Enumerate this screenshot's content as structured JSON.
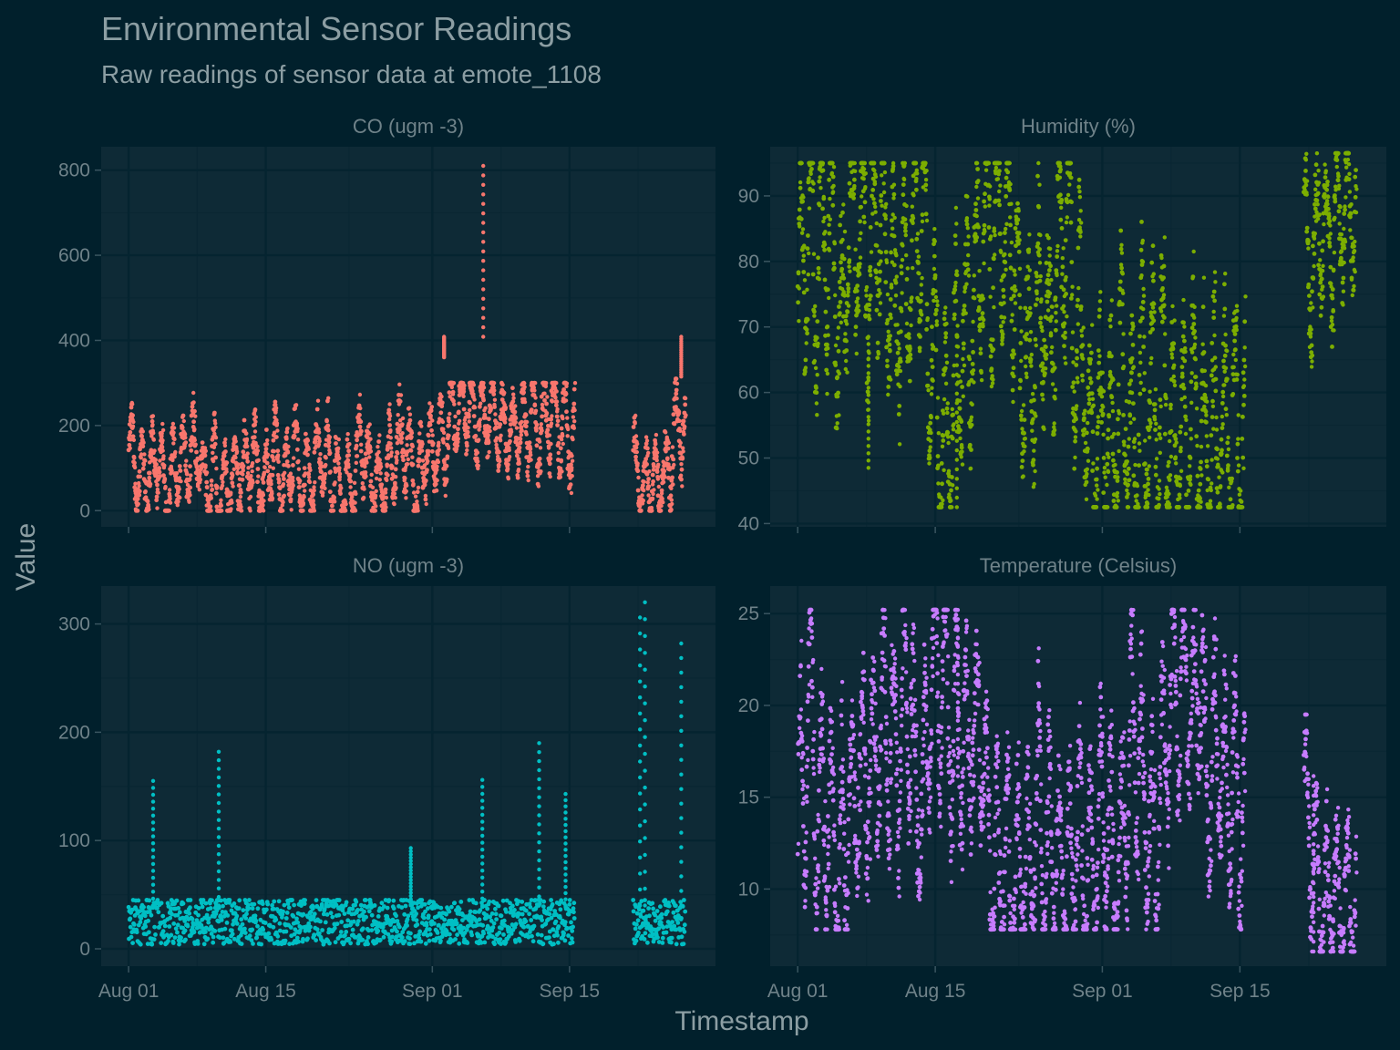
{
  "title": "Environmental Sensor Readings",
  "subtitle": "Raw readings of sensor data at emote_1108",
  "chart_data": {
    "type": "scatter",
    "layout": "facet 2x2, independent y scales, shared x axis",
    "xlabel": "Timestamp",
    "ylabel": "Value",
    "x_ticks": [
      "Aug 01",
      "Aug 15",
      "Sep 01",
      "Sep 15"
    ],
    "x_tick_days": [
      0,
      14,
      31,
      45
    ],
    "facets": [
      {
        "name": "CO (ugm -3)",
        "color": "#f8766d",
        "y_ticks": [
          0,
          200,
          400,
          600,
          800
        ],
        "ylim": [
          -38,
          855
        ],
        "xlim": [
          -2.8,
          59.9
        ],
        "segments": [
          {
            "start_day": 0,
            "end_day": 45.5,
            "min": 0,
            "max": 300,
            "mean": 150
          },
          {
            "start_day": 51.5,
            "end_day": 56.8,
            "min": 0,
            "max": 310,
            "mean": 110
          }
        ],
        "peaks": [
          {
            "day": 32.2,
            "value": 360
          },
          {
            "day": 36.2,
            "value": 810
          },
          {
            "day": 56.4,
            "value": 315
          }
        ]
      },
      {
        "name": "Humidity (%)",
        "color": "#7cae00",
        "y_ticks": [
          40,
          50,
          60,
          70,
          80,
          90
        ],
        "ylim": [
          39.5,
          97.5
        ],
        "xlim": [
          -2.8,
          59.9
        ],
        "segments": [
          {
            "start_day": 0,
            "end_day": 45.5,
            "min": 42.5,
            "max": 95,
            "mean": 75
          },
          {
            "start_day": 51.5,
            "end_day": 56.8,
            "min": 60,
            "max": 96.5,
            "mean": 82
          }
        ],
        "peaks": [
          {
            "day": 7.2,
            "value": 48.5
          },
          {
            "day": 16.2,
            "value": 42.5
          }
        ]
      },
      {
        "name": "NO (ugm -3)",
        "color": "#00bfc4",
        "y_ticks": [
          0,
          100,
          200,
          300
        ],
        "ylim": [
          -16,
          335
        ],
        "xlim": [
          -2.8,
          59.9
        ],
        "segments": [
          {
            "start_day": 0,
            "end_day": 45.5,
            "min": 0,
            "max": 45,
            "mean": 18
          },
          {
            "start_day": 51.5,
            "end_day": 56.8,
            "min": 0,
            "max": 45,
            "mean": 20
          }
        ],
        "peaks": [
          {
            "day": 2.5,
            "value": 155
          },
          {
            "day": 9.2,
            "value": 182
          },
          {
            "day": 28.8,
            "value": 93
          },
          {
            "day": 36.1,
            "value": 156
          },
          {
            "day": 41.9,
            "value": 190
          },
          {
            "day": 44.6,
            "value": 143
          },
          {
            "day": 52.2,
            "value": 306
          },
          {
            "day": 52.7,
            "value": 320
          },
          {
            "day": 56.4,
            "value": 282
          }
        ]
      },
      {
        "name": "Temperature (Celsius)",
        "color": "#c77cff",
        "y_ticks": [
          10,
          15,
          20,
          25
        ],
        "ylim": [
          5.8,
          26.5
        ],
        "xlim": [
          -2.8,
          59.9
        ],
        "segments": [
          {
            "start_day": 0,
            "end_day": 45.5,
            "min": 7.8,
            "max": 25.2,
            "mean": 15
          },
          {
            "start_day": 51.5,
            "end_day": 56.8,
            "min": 6.6,
            "max": 19.5,
            "mean": 14
          }
        ],
        "peaks": [
          {
            "day": 16.3,
            "value": 25.2
          },
          {
            "day": 52.5,
            "value": 6.6
          }
        ]
      }
    ]
  }
}
